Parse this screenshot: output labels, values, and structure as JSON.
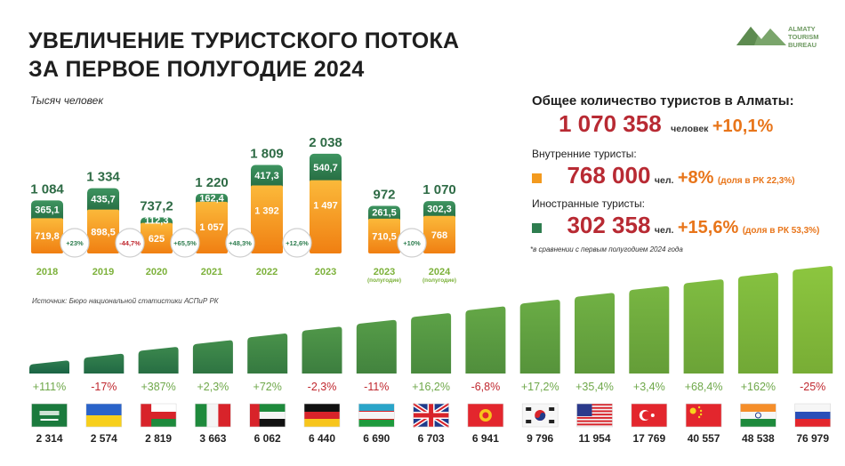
{
  "title": [
    "УВЕЛИЧЕНИЕ ТУРИСТСКОГО ПОТОКА",
    "ЗА ПЕРВОЕ ПОЛУГОДИЕ 2024"
  ],
  "logo": {
    "lines": [
      "ALMATY",
      "TOURISM",
      "BUREAU"
    ],
    "icon": "mountains-icon",
    "color": "#6f9a62"
  },
  "unit_label": "Тысяч человек",
  "source": "Источник: Бюро национальной статистики АСПиР РК",
  "colors": {
    "green": "#2e7d4f",
    "orange": "#f39a1e",
    "red_text": "#b82a33",
    "orange_text": "#e8751a",
    "light_green": "#8cc63f"
  },
  "chart_data": [
    {
      "type": "bar",
      "stacked": true,
      "ylabel": "Тысяч человек",
      "categories": [
        "2018",
        "2019",
        "2020",
        "2021",
        "2022",
        "2023",
        "2023",
        "2024"
      ],
      "category_sublabels": [
        "",
        "",
        "",
        "",
        "",
        "",
        "(полугодие)",
        "(полугодие)"
      ],
      "totals": [
        "1 084",
        "1 334",
        "737,2",
        "1 220",
        "1 809",
        "2 038",
        "972",
        "1 070"
      ],
      "series": [
        {
          "name": "Внутренние туристы",
          "values": [
            719.8,
            898.5,
            625,
            1057,
            1392,
            1497,
            710.5,
            768
          ],
          "labels": [
            "719,8",
            "898,5",
            "625",
            "1 057",
            "1 392",
            "1 497",
            "710,5",
            "768"
          ],
          "color": "#f39a1e"
        },
        {
          "name": "Иностранные туристы",
          "values": [
            365.1,
            435.7,
            112.3,
            162.4,
            417.3,
            540.7,
            261.5,
            302.3
          ],
          "labels": [
            "365,1",
            "435,7",
            "112,3",
            "162,4",
            "417,3",
            "540,7",
            "261,5",
            "302,3"
          ],
          "color": "#2e7d4f"
        }
      ],
      "growth_badges": [
        {
          "text": "+23%",
          "color": "#2e7d4f"
        },
        {
          "text": "-44,7%",
          "color": "#c0282f"
        },
        {
          "text": "+65,5%",
          "color": "#2e7d4f"
        },
        {
          "text": "+48,3%",
          "color": "#2e7d4f"
        },
        {
          "text": "+12,6%",
          "color": "#2e7d4f"
        },
        {
          "text": "+10%",
          "color": "#2e7d4f"
        }
      ],
      "grid": false
    },
    {
      "type": "bar",
      "categories": [
        "Саудовская Аравия",
        "Украина",
        "Оман",
        "Италия",
        "ОАЭ",
        "Германия",
        "Узбекистан",
        "Великобритания",
        "Кыргызстан",
        "Южная Корея",
        "США",
        "Турция",
        "Китай",
        "Индия",
        "Россия"
      ],
      "values": [
        2314,
        2574,
        2819,
        3663,
        6062,
        6440,
        6690,
        6703,
        6941,
        9796,
        11954,
        17769,
        40557,
        48538,
        76979
      ],
      "value_labels": [
        "2 314",
        "2 574",
        "2 819",
        "3 663",
        "6 062",
        "6 440",
        "6 690",
        "6 703",
        "6 941",
        "9 796",
        "11 954",
        "17 769",
        "40 557",
        "48 538",
        "76 979"
      ],
      "growth": [
        "+111%",
        "-17%",
        "+387%",
        "+2,3%",
        "+72%",
        "-2,3%",
        "-11%",
        "+16,2%",
        "-6,8%",
        "+17,2%",
        "+35,4%",
        "+3,4%",
        "+68,4%",
        "+162%",
        "-25%"
      ],
      "flags": [
        "flag-saudi-arabia-icon",
        "flag-ukraine-icon",
        "flag-oman-icon",
        "flag-italy-icon",
        "flag-uae-icon",
        "flag-germany-icon",
        "flag-uzbekistan-icon",
        "flag-uk-icon",
        "flag-kyrgyzstan-icon",
        "flag-south-korea-icon",
        "flag-usa-icon",
        "flag-turkey-icon",
        "flag-china-icon",
        "flag-india-icon",
        "flag-russia-icon"
      ],
      "grid": false
    }
  ],
  "summary": {
    "head": "Общее количество туристов в Алматы:",
    "total_value": "1 070 358",
    "total_unit": "человек",
    "total_pct": "+10,1%",
    "domestic_head": "Внутренние туристы:",
    "domestic_value": "768 000",
    "domestic_unit": "чел.",
    "domestic_pct": "+8%",
    "domestic_share": "(доля в РК 22,3%)",
    "foreign_head": "Иностранные туристы:",
    "foreign_value": "302 358",
    "foreign_unit": "чел.",
    "foreign_pct": "+15,6%",
    "foreign_share": "(доля в РК 53,3%)",
    "note": "*в сравнении с первым полугодием 2024 года"
  }
}
